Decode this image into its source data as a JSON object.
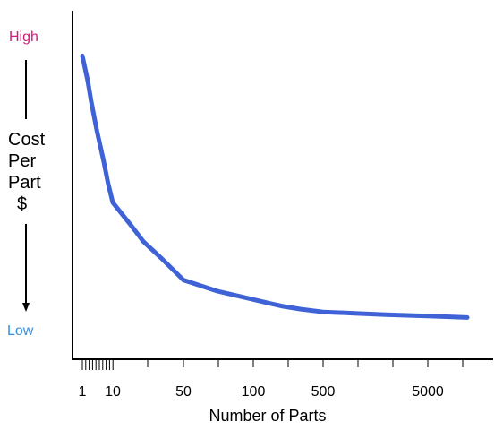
{
  "chart_data": {
    "type": "line",
    "xlabel": "Number of Parts",
    "ylabel_lines": [
      "Cost",
      "Per",
      "Part",
      "$"
    ],
    "y_high_label": "High",
    "y_low_label": "Low",
    "x_scale": "log",
    "x_tick_labels": [
      "1",
      "10",
      "50",
      "100",
      "500",
      "5000"
    ],
    "x_tick_values": [
      1,
      10,
      50,
      100,
      500,
      5000
    ],
    "series": [
      {
        "color": "#3f63d6",
        "x": [
          1,
          1.5,
          2,
          3,
          5,
          7,
          10,
          15,
          20,
          30,
          50,
          70,
          100,
          150,
          200,
          300,
          500,
          1000,
          2000,
          5000,
          10000
        ],
        "y": [
          0.96,
          0.87,
          0.79,
          0.69,
          0.58,
          0.5,
          0.43,
          0.35,
          0.29,
          0.23,
          0.15,
          0.11,
          0.08,
          0.065,
          0.055,
          0.045,
          0.035,
          0.03,
          0.025,
          0.02,
          0.015
        ]
      }
    ],
    "ylim": [
      0,
      1
    ],
    "grid": false,
    "colors": {
      "high": "#d6187a",
      "low": "#3a8fd8",
      "line": "#3f63d6",
      "axis": "#000000"
    }
  }
}
